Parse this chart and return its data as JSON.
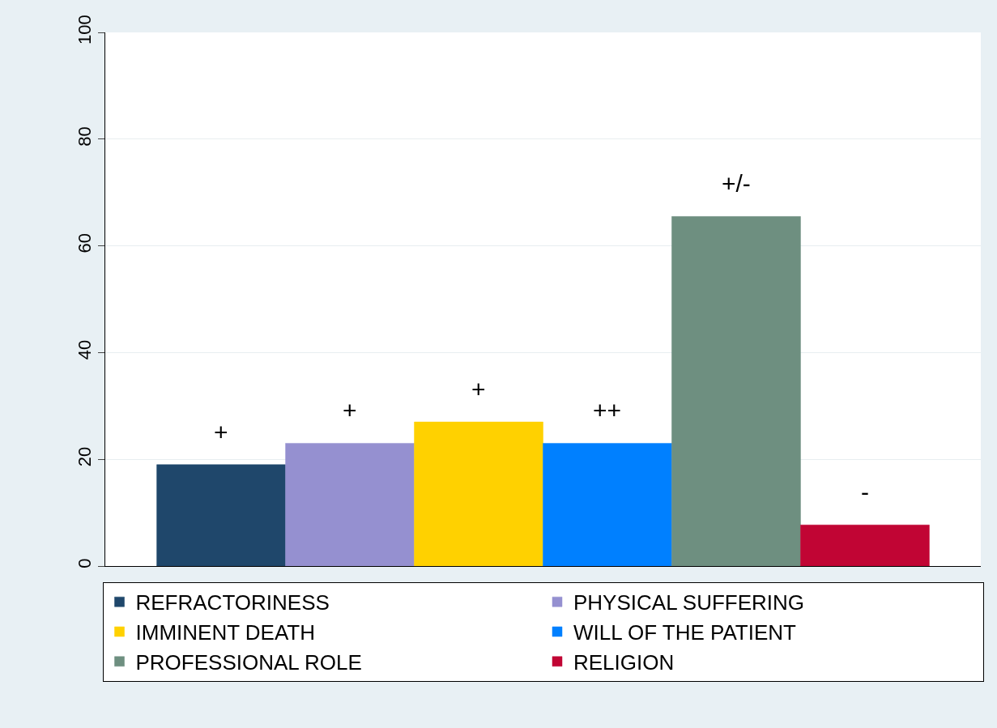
{
  "chart_data": {
    "type": "bar",
    "categories": [
      null,
      null,
      null,
      null,
      null,
      null
    ],
    "series": [
      {
        "name": "REFRACTORINESS",
        "color": "#1f476b",
        "values": [
          19,
          null,
          null,
          null,
          null,
          null
        ]
      },
      {
        "name": "PHYSICAL SUFFERING",
        "color": "#9590d0",
        "values": [
          null,
          23,
          null,
          null,
          null,
          null
        ]
      },
      {
        "name": "IMMINENT DEATH",
        "color": "#ffd100",
        "values": [
          null,
          null,
          27,
          null,
          null,
          null
        ]
      },
      {
        "name": "WILL OF THE PATIENT",
        "color": "#0080ff",
        "values": [
          null,
          null,
          null,
          23,
          null,
          null
        ]
      },
      {
        "name": "PROFESSIONAL ROLE",
        "color": "#6e8f80",
        "values": [
          null,
          null,
          null,
          null,
          65.5,
          null
        ]
      },
      {
        "name": "RELIGION",
        "color": "#c10534",
        "values": [
          null,
          null,
          null,
          null,
          null,
          7.7
        ]
      }
    ],
    "annotations": [
      "+",
      "+",
      "+",
      "++",
      "+/-",
      "-"
    ],
    "ylim": [
      0,
      100
    ],
    "yticks": [
      0,
      20,
      40,
      60,
      80,
      100
    ],
    "grid": "y",
    "legend": "bottom"
  }
}
